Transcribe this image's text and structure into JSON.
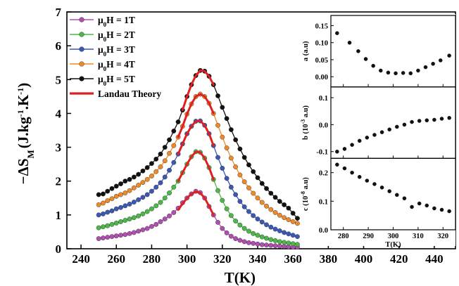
{
  "chart_data": [
    {
      "type": "line",
      "xlabel": "T(K)",
      "ylabel_main": "−ΔS",
      "ylabel_sub": "M",
      "ylabel_units": "(J.kg",
      "ylabel_exp1": "-1",
      "ylabel_mid": ".K",
      "ylabel_exp2": "-1",
      "ylabel_close": ")",
      "xlim": [
        232,
        452
      ],
      "ylim": [
        0,
        7
      ],
      "xticks": [
        240,
        260,
        280,
        300,
        320,
        340,
        360,
        380,
        400,
        420,
        440
      ],
      "yticks": [
        0,
        1,
        2,
        3,
        4,
        5,
        6,
        7
      ],
      "legend_position": "top-left",
      "legend": [
        {
          "prefix": "μ",
          "sub": "0",
          "text": "H = 1T",
          "color": "#b04fb0"
        },
        {
          "prefix": "μ",
          "sub": "0",
          "text": "H = 2T",
          "color": "#4cb848"
        },
        {
          "prefix": "μ",
          "sub": "0",
          "text": "H = 3T",
          "color": "#3c58b4"
        },
        {
          "prefix": "μ",
          "sub": "0",
          "text": "H = 4T",
          "color": "#f08a28"
        },
        {
          "prefix": "μ",
          "sub": "0",
          "text": "H = 5T",
          "color": "#111111"
        },
        {
          "prefix": "",
          "sub": "",
          "text": "Landau Theory",
          "color": "#e02020"
        }
      ],
      "x": [
        250,
        252.5,
        255,
        257.5,
        260,
        262.5,
        265,
        267.5,
        270,
        272.5,
        275,
        277.5,
        280,
        282.5,
        285,
        287.5,
        290,
        292.5,
        295,
        297.5,
        300,
        302.5,
        305,
        307.5,
        310,
        312.5,
        315,
        317.5,
        320,
        322.5,
        325,
        327.5,
        330,
        332.5,
        335,
        337.5,
        340,
        342.5,
        345,
        347.5,
        350,
        352.5,
        355,
        357.5,
        360,
        362.5
      ],
      "series": [
        {
          "name": "μ0H = 1T",
          "color": "#b04fb0",
          "values": [
            0.3,
            0.32,
            0.34,
            0.36,
            0.38,
            0.4,
            0.42,
            0.45,
            0.48,
            0.52,
            0.56,
            0.6,
            0.66,
            0.72,
            0.8,
            0.88,
            0.97,
            1.07,
            1.2,
            1.36,
            1.5,
            1.62,
            1.7,
            1.66,
            1.5,
            1.25,
            1.0,
            0.78,
            0.6,
            0.47,
            0.37,
            0.3,
            0.25,
            0.21,
            0.18,
            0.16,
            0.14,
            0.12,
            0.11,
            0.1,
            0.09,
            0.08,
            0.07,
            0.06,
            0.05,
            0.05
          ]
        },
        {
          "name": "μ0H = 2T",
          "color": "#4cb848",
          "values": [
            0.62,
            0.65,
            0.68,
            0.72,
            0.76,
            0.8,
            0.84,
            0.88,
            0.92,
            0.97,
            1.03,
            1.1,
            1.18,
            1.27,
            1.37,
            1.5,
            1.65,
            1.82,
            2.0,
            2.25,
            2.5,
            2.72,
            2.87,
            2.85,
            2.68,
            2.4,
            2.05,
            1.72,
            1.43,
            1.18,
            0.98,
            0.82,
            0.7,
            0.6,
            0.52,
            0.45,
            0.4,
            0.35,
            0.31,
            0.27,
            0.24,
            0.21,
            0.19,
            0.17,
            0.15,
            0.13
          ]
        },
        {
          "name": "μ0H = 3T",
          "color": "#3c58b4",
          "values": [
            1.0,
            1.03,
            1.08,
            1.12,
            1.18,
            1.22,
            1.27,
            1.32,
            1.38,
            1.45,
            1.52,
            1.6,
            1.7,
            1.82,
            1.95,
            2.12,
            2.32,
            2.55,
            2.8,
            3.1,
            3.4,
            3.62,
            3.77,
            3.78,
            3.65,
            3.4,
            3.05,
            2.7,
            2.38,
            2.08,
            1.82,
            1.6,
            1.4,
            1.24,
            1.1,
            0.98,
            0.88,
            0.79,
            0.71,
            0.64,
            0.58,
            0.53,
            0.48,
            0.44,
            0.4,
            0.36
          ]
        },
        {
          "name": "μ0H = 4T",
          "color": "#f08a28",
          "values": [
            1.3,
            1.35,
            1.42,
            1.48,
            1.55,
            1.6,
            1.65,
            1.72,
            1.8,
            1.88,
            1.96,
            2.05,
            2.15,
            2.28,
            2.42,
            2.6,
            2.82,
            3.05,
            3.3,
            3.62,
            3.98,
            4.28,
            4.5,
            4.57,
            4.5,
            4.3,
            4.0,
            3.65,
            3.3,
            2.98,
            2.68,
            2.42,
            2.18,
            1.98,
            1.8,
            1.64,
            1.5,
            1.37,
            1.26,
            1.16,
            1.07,
            0.99,
            0.92,
            0.86,
            0.8,
            0.75
          ]
        },
        {
          "name": "μ0H = 5T",
          "color": "#111111",
          "values": [
            1.6,
            1.62,
            1.7,
            1.78,
            1.85,
            1.92,
            2.0,
            2.05,
            2.12,
            2.2,
            2.3,
            2.4,
            2.52,
            2.65,
            2.8,
            3.0,
            3.22,
            3.48,
            3.75,
            4.1,
            4.5,
            4.85,
            5.12,
            5.27,
            5.25,
            5.1,
            4.85,
            4.52,
            4.18,
            3.85,
            3.52,
            3.22,
            2.95,
            2.7,
            2.48,
            2.28,
            2.1,
            1.93,
            1.78,
            1.64,
            1.52,
            1.4,
            1.3,
            1.2,
            1.05,
            0.9
          ]
        }
      ],
      "landau_theory": {
        "color": "#e02020",
        "curves": [
          {
            "x": [
              295,
              297.5,
              300,
              302.5,
              305,
              307.5,
              310,
              312.5,
              315
            ],
            "values": [
              1.15,
              1.33,
              1.5,
              1.62,
              1.69,
              1.65,
              1.5,
              1.26,
              1.0
            ]
          },
          {
            "x": [
              295,
              297.5,
              300,
              302.5,
              305,
              307.5,
              310,
              312.5,
              315
            ],
            "values": [
              2.0,
              2.25,
              2.5,
              2.72,
              2.87,
              2.85,
              2.68,
              2.4,
              2.05
            ]
          },
          {
            "x": [
              295,
              297.5,
              300,
              302.5,
              305,
              307.5,
              310,
              312.5,
              315
            ],
            "values": [
              2.8,
              3.1,
              3.4,
              3.62,
              3.77,
              3.78,
              3.65,
              3.4,
              3.05
            ]
          },
          {
            "x": [
              295,
              297.5,
              300,
              302.5,
              305,
              307.5,
              310,
              312.5,
              315
            ],
            "values": [
              3.3,
              3.62,
              3.98,
              4.28,
              4.5,
              4.57,
              4.5,
              4.3,
              4.0
            ]
          },
          {
            "x": [
              297.5,
              300,
              302.5,
              305,
              307.5,
              310,
              312.5,
              315
            ],
            "values": [
              4.1,
              4.5,
              4.85,
              5.12,
              5.27,
              5.25,
              5.1,
              4.85
            ]
          }
        ]
      }
    },
    {
      "type": "scatter",
      "xlabel": "T(K)",
      "xlim": [
        275,
        325
      ],
      "xticks": [
        280,
        290,
        300,
        310,
        320
      ],
      "panels": [
        {
          "ylabel": "a (a.u)",
          "ylim": [
            -0.03,
            0.18
          ],
          "yticks": [
            0.0,
            0.05,
            0.1,
            0.15
          ],
          "ytick_labels": [
            "0.00",
            "0.05",
            "0.10",
            "0.15"
          ],
          "x": [
            277.5,
            282.5,
            286,
            289,
            292,
            295,
            298,
            301,
            304,
            307,
            310,
            313,
            316,
            319,
            322.5
          ],
          "values": [
            0.128,
            0.1,
            0.075,
            0.052,
            0.032,
            0.018,
            0.012,
            0.01,
            0.011,
            0.01,
            0.018,
            0.028,
            0.038,
            0.048,
            0.062
          ]
        },
        {
          "ylabel_prefix": "b (10",
          "ylabel_exp": "-3",
          "ylabel_suffix": " a.u)",
          "ylim": [
            -0.125,
            0.14
          ],
          "yticks": [
            -0.1,
            0.0,
            0.1
          ],
          "ytick_labels": [
            "-0.1",
            "0.0",
            "0.1"
          ],
          "x": [
            277.5,
            280.5,
            283.5,
            286.5,
            289.5,
            292.5,
            295.5,
            298.5,
            301.5,
            304.5,
            307.5,
            310.5,
            313.5,
            316.5,
            319.5,
            322.5
          ],
          "values": [
            -0.1,
            -0.09,
            -0.075,
            -0.06,
            -0.048,
            -0.038,
            -0.028,
            -0.018,
            -0.008,
            0.0,
            0.01,
            0.014,
            0.016,
            0.018,
            0.022,
            0.025
          ]
        },
        {
          "ylabel_prefix": "c (10",
          "ylabel_exp": "-8",
          "ylabel_suffix": " a.u)",
          "ylim": [
            0.0,
            0.25
          ],
          "yticks": [
            0.0,
            0.1,
            0.2
          ],
          "ytick_labels": [
            "0.0",
            "0.1",
            "0.2"
          ],
          "x": [
            277.5,
            280.5,
            283.5,
            286.5,
            289.5,
            292.5,
            295.5,
            298.5,
            301.5,
            304.5,
            307.5,
            310.5,
            313.5,
            316.5,
            319.5,
            322.5
          ],
          "values": [
            0.228,
            0.215,
            0.2,
            0.185,
            0.172,
            0.16,
            0.148,
            0.135,
            0.122,
            0.11,
            0.08,
            0.092,
            0.085,
            0.075,
            0.07,
            0.065
          ]
        }
      ]
    }
  ]
}
